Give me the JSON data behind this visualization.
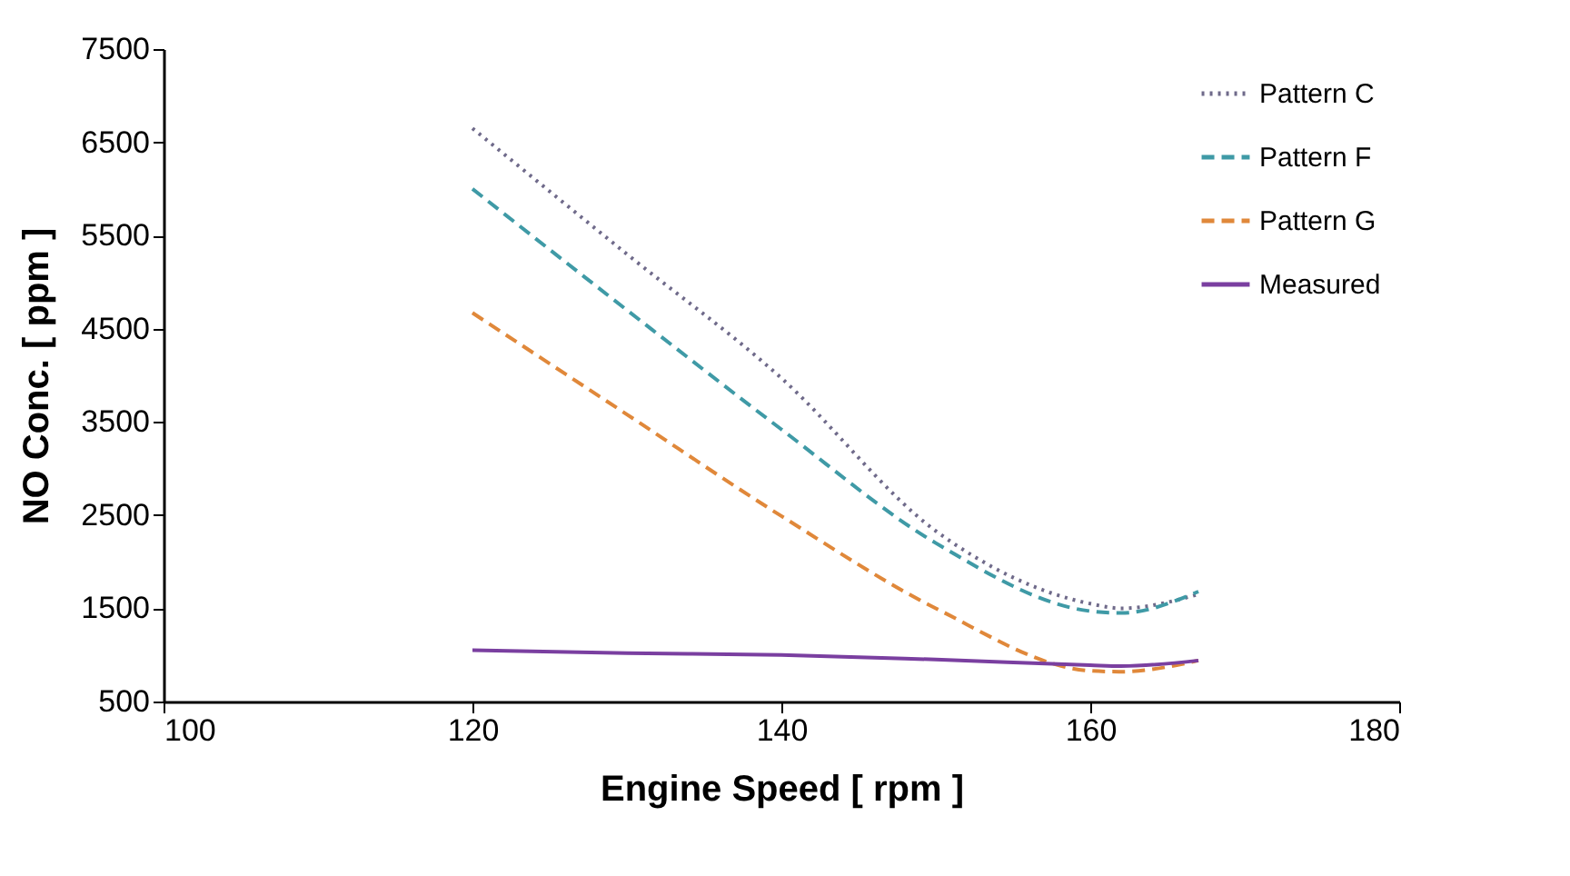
{
  "chart_data": {
    "type": "line",
    "xlabel": "Engine Speed [  rpm ]",
    "ylabel": "NO Conc. [ ppm ]",
    "xlim": [
      100,
      180
    ],
    "xticks": [
      100,
      120,
      140,
      160,
      180
    ],
    "ylim": [
      500,
      7500
    ],
    "yticks": [
      500,
      1500,
      2500,
      3500,
      4500,
      5500,
      6500,
      7500
    ],
    "grid": false,
    "legend": "top right",
    "marker": "none",
    "x": [
      120,
      130,
      140,
      150,
      160,
      162,
      167
    ],
    "series": [
      {
        "name": "Pattern C",
        "color": "#6f6a8a",
        "line_style": "dotted",
        "values": [
          6650,
          5300,
          3970,
          2330,
          1550,
          1500,
          1650
        ]
      },
      {
        "name": "Pattern F",
        "color": "#3f9aa6",
        "line_style": "dashed",
        "values": [
          6000,
          4700,
          3420,
          2200,
          1470,
          1450,
          1680
        ]
      },
      {
        "name": "Pattern G",
        "color": "#e0883a",
        "line_style": "dashed",
        "values": [
          4670,
          3580,
          2490,
          1500,
          830,
          820,
          940
        ]
      },
      {
        "name": "Measured",
        "color": "#7a3fa0",
        "line_style": "solid",
        "values": [
          1050,
          1020,
          1000,
          950,
          890,
          880,
          940
        ]
      }
    ]
  }
}
